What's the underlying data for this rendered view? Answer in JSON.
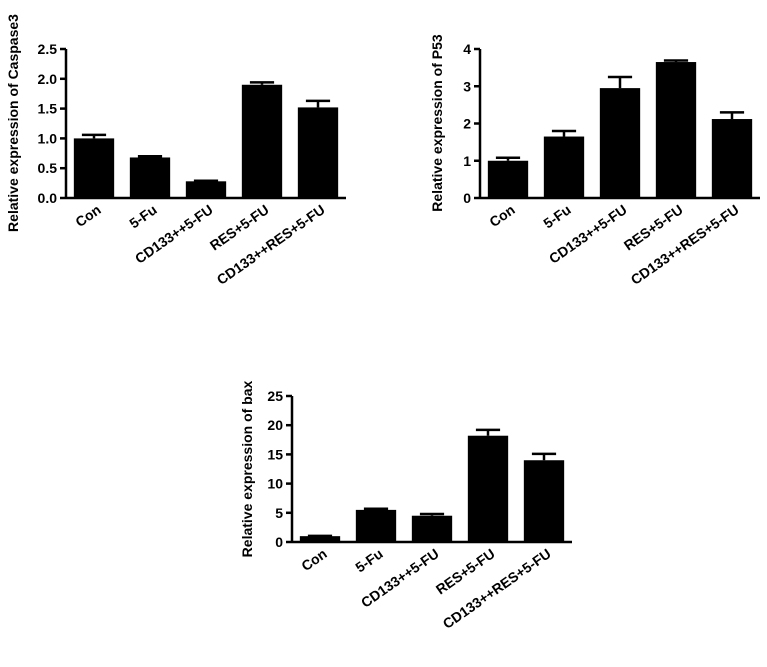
{
  "chart_data": [
    {
      "type": "bar",
      "ylabel": "Relative expression of Caspase3",
      "categories": [
        "Con",
        "5-Fu",
        "CD133++5-FU",
        "RES+5-FU",
        "CD133++RES+5-FU"
      ],
      "values": [
        1.0,
        0.68,
        0.28,
        1.9,
        1.52
      ],
      "errors": [
        0.06,
        0.02,
        0.01,
        0.04,
        0.11
      ],
      "ylim": [
        0,
        2.5
      ],
      "yticks": [
        "0.0",
        "0.5",
        "1.0",
        "1.5",
        "2.0",
        "2.5"
      ],
      "color": "#000000"
    },
    {
      "type": "bar",
      "ylabel": "Relative expression of P53",
      "categories": [
        "Con",
        "5-Fu",
        "CD133++5-FU",
        "RES+5-FU",
        "CD133++RES+5-FU"
      ],
      "values": [
        1.0,
        1.65,
        2.95,
        3.65,
        2.12
      ],
      "errors": [
        0.08,
        0.15,
        0.3,
        0.04,
        0.18
      ],
      "ylim": [
        0,
        4
      ],
      "yticks": [
        "0",
        "1",
        "2",
        "3",
        "4"
      ],
      "color": "#000000"
    },
    {
      "type": "bar",
      "ylabel": "Relative expression of bax",
      "categories": [
        "Con",
        "5-Fu",
        "CD133++5-FU",
        "RES+5-FU",
        "CD133++RES+5-FU"
      ],
      "values": [
        1.0,
        5.5,
        4.5,
        18.2,
        14.0
      ],
      "errors": [
        0.05,
        0.2,
        0.3,
        1.0,
        1.1
      ],
      "ylim": [
        0,
        25
      ],
      "yticks": [
        "0",
        "5",
        "10",
        "15",
        "20",
        "25"
      ],
      "color": "#000000"
    }
  ]
}
